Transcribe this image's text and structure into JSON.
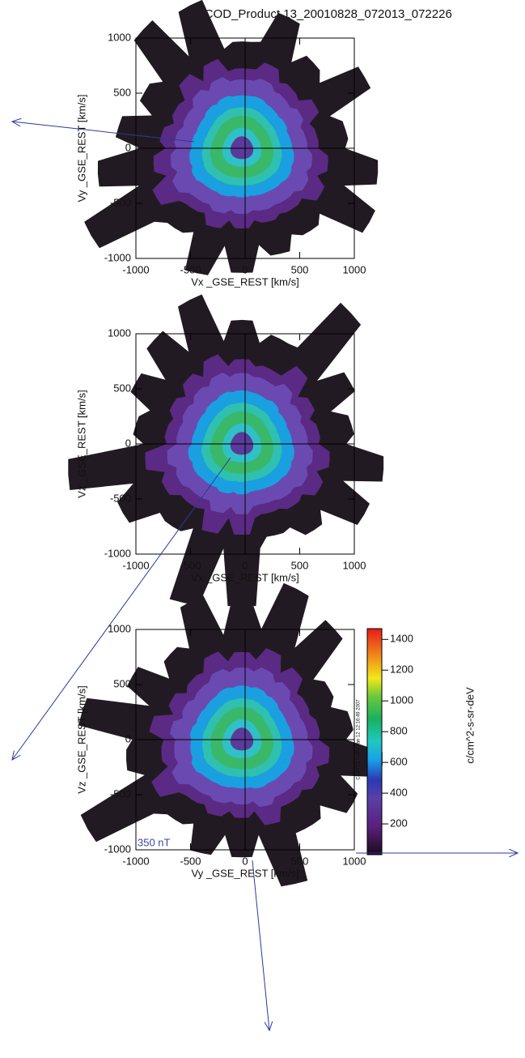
{
  "title": "C4_COD_Product 13_20010828_072013_072226",
  "chart_data": [
    {
      "type": "contour",
      "xlabel": "Vx _GSE_REST [km/s]",
      "ylabel": "Vy _GSE_REST [km/s]",
      "xlim": [
        -1000,
        1000
      ],
      "ylim": [
        -1000,
        1000
      ],
      "xticks": [
        -1000,
        -500,
        0,
        500,
        1000
      ],
      "yticks": [
        -1000,
        -500,
        0,
        500,
        1000
      ]
    },
    {
      "type": "contour",
      "xlabel": "Vx _GSE_REST [km/s]",
      "ylabel": "Vz _GSE_REST [km/s]",
      "xlim": [
        -1000,
        1000
      ],
      "ylim": [
        -1000,
        1000
      ],
      "xticks": [
        -1000,
        -500,
        0,
        500,
        1000
      ],
      "yticks": [
        -1000,
        -500,
        0,
        500,
        1000
      ]
    },
    {
      "type": "contour",
      "xlabel": "Vy _GSE_REST [km/s]",
      "ylabel": "Vz _GSE_REST [km/s]",
      "xlim": [
        -1000,
        1000
      ],
      "ylim": [
        -1000,
        1000
      ],
      "xticks": [
        -1000,
        -500,
        0,
        500,
        1000
      ],
      "yticks": [
        -1000,
        -500,
        0,
        500,
        1000
      ],
      "annotation": "350 nT",
      "stamp": "CCAT13.7.0Fri Jan 12 12:16:49 2007",
      "colorbar": {
        "label": "c/cm^2-s-sr-deV",
        "lim": [
          0,
          1470
        ],
        "ticks": [
          200,
          400,
          600,
          800,
          1000,
          1200,
          1400
        ]
      }
    }
  ]
}
